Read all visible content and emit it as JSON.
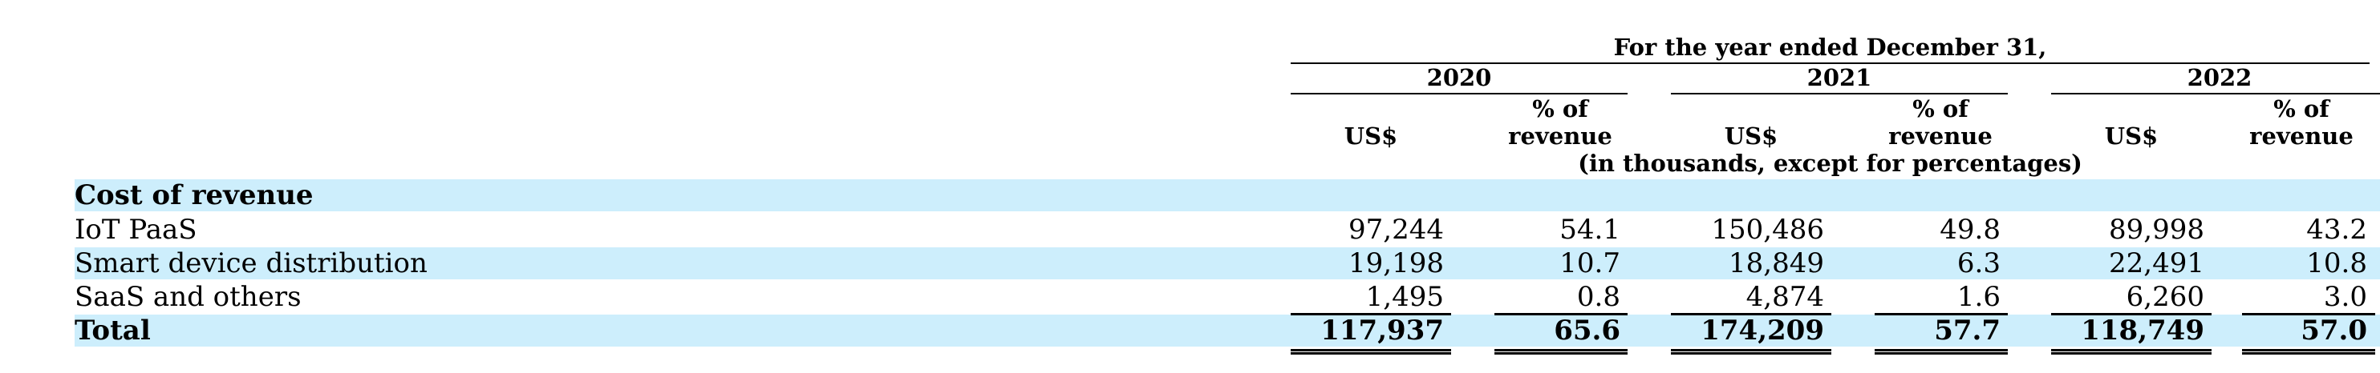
{
  "header": {
    "period": "For the year ended December 31,",
    "years": [
      "2020",
      "2021",
      "2022"
    ],
    "col_usd": "US$",
    "col_pct_line1": "% of",
    "col_pct_line2": "revenue",
    "units_note": "(in thousands, except for percentages)"
  },
  "table": {
    "section_title": "Cost of revenue",
    "rows": [
      {
        "label": "IoT PaaS",
        "values": [
          "97,244",
          "54.1",
          "150,486",
          "49.8",
          "89,998",
          "43.2"
        ]
      },
      {
        "label": "Smart device distribution",
        "values": [
          "19,198",
          "10.7",
          "18,849",
          "6.3",
          "22,491",
          "10.8"
        ]
      },
      {
        "label": "SaaS and others",
        "values": [
          "1,495",
          "0.8",
          "4,874",
          "1.6",
          "6,260",
          "3.0"
        ]
      }
    ],
    "total": {
      "label": "Total",
      "values": [
        "117,937",
        "65.6",
        "174,209",
        "57.7",
        "118,749",
        "57.0"
      ]
    }
  },
  "colors": {
    "band": "#cdeefc",
    "text": "#000000"
  }
}
